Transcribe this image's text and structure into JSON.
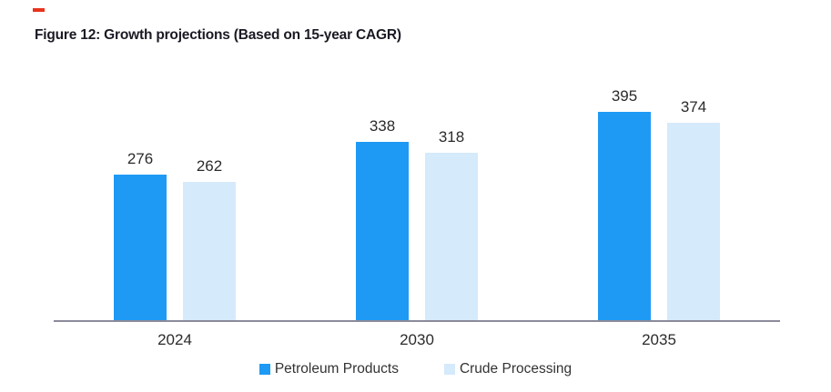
{
  "page": {
    "background": "#FFFFFF"
  },
  "brand": {
    "dash_color": "#E8341C"
  },
  "figure": {
    "title": "Figure 12: Growth projections (Based on 15-year CAGR)"
  },
  "chart_data": {
    "type": "bar",
    "title": "Figure 12: Growth projections (Based on 15-year CAGR)",
    "categories": [
      "2024",
      "2030",
      "2035"
    ],
    "series": [
      {
        "name": "Petroleum Products",
        "color": "#1E9AF5",
        "values": [
          276,
          338,
          395
        ]
      },
      {
        "name": "Crude Processing",
        "color": "#D5EAFB",
        "values": [
          262,
          318,
          374
        ]
      }
    ],
    "xlabel": "",
    "ylabel": "",
    "ylim": [
      0,
      414
    ],
    "grid": false,
    "data_labels": true,
    "legend_position": "bottom",
    "axis_line_color": "#8A8A9A",
    "text_color": "#2B2B2B"
  }
}
